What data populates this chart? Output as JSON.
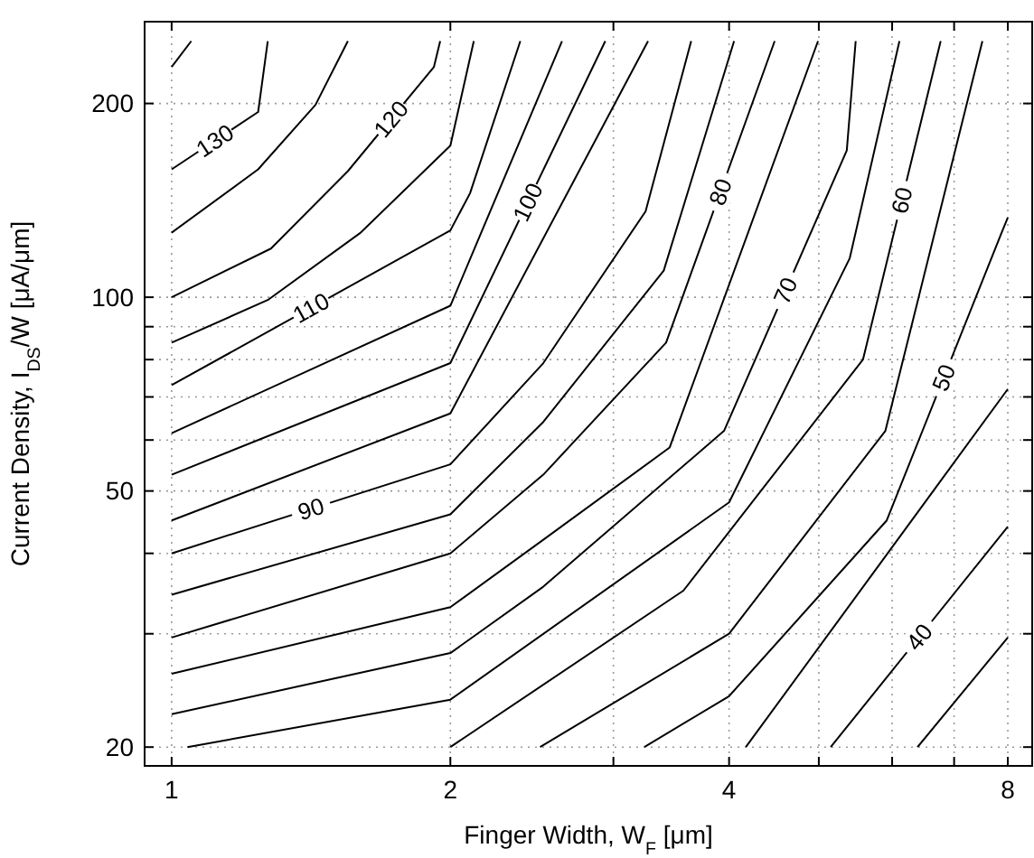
{
  "chart_data": {
    "type": "line",
    "xlabel": "Finger Width, W$_{F}$ [μm]",
    "ylabel": "Current Density, I$_{DS}$/W [μA/μm]",
    "log": "xy",
    "grid": true,
    "xlim": [
      0.935,
      8.5
    ],
    "ylim": [
      18.7,
      268
    ],
    "xticks": [
      1,
      2,
      {
        "value": 3,
        "label": null
      },
      4,
      {
        "value": 5,
        "label": null
      },
      {
        "value": 6,
        "label": null
      },
      {
        "value": 7,
        "label": null
      },
      8
    ],
    "yticks": [
      20,
      {
        "value": 30,
        "label": null
      },
      {
        "value": 40,
        "label": null
      },
      50,
      {
        "value": 60,
        "label": null
      },
      {
        "value": 70,
        "label": null
      },
      {
        "value": 80,
        "label": null
      },
      {
        "value": 90,
        "label": null
      },
      100,
      200
    ],
    "series": [
      {
        "color": "#000000",
        "x": [
          1,
          1.05
        ],
        "values": [
          228,
          250
        ]
      },
      {
        "name": "130",
        "color": "#000000",
        "x": [
          1,
          1.24,
          1.27
        ],
        "values": [
          158,
          194,
          250
        ]
      },
      {
        "color": "#000000",
        "x": [
          1,
          1.24,
          1.43,
          1.55
        ],
        "values": [
          126,
          158,
          199,
          250
        ]
      },
      {
        "name": "120",
        "color": "#000000",
        "x": [
          1,
          1.28,
          1.55,
          1.92,
          1.95
        ],
        "values": [
          100,
          119,
          157,
          228,
          250
        ]
      },
      {
        "color": "#000000",
        "x": [
          1,
          1.27,
          1.6,
          2,
          2.12
        ],
        "values": [
          85,
          99,
          126,
          172,
          250
        ]
      },
      {
        "name": "110",
        "color": "#000000",
        "x": [
          1,
          2,
          2.1,
          2.38
        ],
        "values": [
          73,
          127,
          145,
          250
        ]
      },
      {
        "color": "#000000",
        "x": [
          1,
          2,
          2.64
        ],
        "values": [
          61.5,
          97,
          250
        ]
      },
      {
        "name": "100",
        "color": "#000000",
        "x": [
          1,
          2,
          2.94
        ],
        "values": [
          53,
          79,
          250
        ]
      },
      {
        "color": "#000000",
        "x": [
          1,
          2,
          3.27
        ],
        "values": [
          45,
          66,
          250
        ]
      },
      {
        "name": "90",
        "color": "#000000",
        "x": [
          1,
          2,
          2.52,
          3.25,
          3.64
        ],
        "values": [
          40,
          55,
          79,
          136,
          250
        ]
      },
      {
        "color": "#000000",
        "x": [
          1,
          2,
          2.52,
          3.4,
          4.05
        ],
        "values": [
          34.5,
          46,
          64,
          110,
          250
        ]
      },
      {
        "name": "80",
        "color": "#000000",
        "x": [
          1,
          2,
          2.52,
          3.42,
          4.48
        ],
        "values": [
          29.6,
          40,
          53,
          85,
          250
        ]
      },
      {
        "color": "#000000",
        "x": [
          1,
          2,
          2.52,
          3.45,
          4.99
        ],
        "values": [
          26,
          33,
          42,
          58.4,
          250
        ]
      },
      {
        "name": "70",
        "color": "#000000",
        "x": [
          1,
          2,
          2.52,
          3.95,
          5.36,
          5.48
        ],
        "values": [
          22.5,
          28,
          35.5,
          62,
          169,
          250
        ]
      },
      {
        "color": "#000000",
        "x": [
          1.04,
          2,
          4,
          5.4,
          6.11
        ],
        "values": [
          20,
          23.7,
          48,
          115,
          250
        ]
      },
      {
        "name": "60",
        "color": "#000000",
        "x": [
          2,
          3.57,
          5.58,
          6.77
        ],
        "values": [
          20,
          35,
          80,
          250
        ]
      },
      {
        "color": "#000000",
        "x": [
          2.5,
          4,
          5.9,
          7.51
        ],
        "values": [
          20,
          30,
          62,
          250
        ]
      },
      {
        "name": "50",
        "color": "#000000",
        "x": [
          3.24,
          4,
          5.92,
          7.86,
          8
        ],
        "values": [
          20,
          24,
          45,
          125,
          133
        ]
      },
      {
        "color": "#000000",
        "x": [
          4.17,
          8
        ],
        "values": [
          20,
          72
        ]
      },
      {
        "name": "40",
        "color": "#000000",
        "x": [
          5.15,
          8
        ],
        "values": [
          20,
          44
        ]
      },
      {
        "color": "#000000",
        "x": [
          6.39,
          8
        ],
        "values": [
          20,
          29.6
        ]
      }
    ]
  }
}
